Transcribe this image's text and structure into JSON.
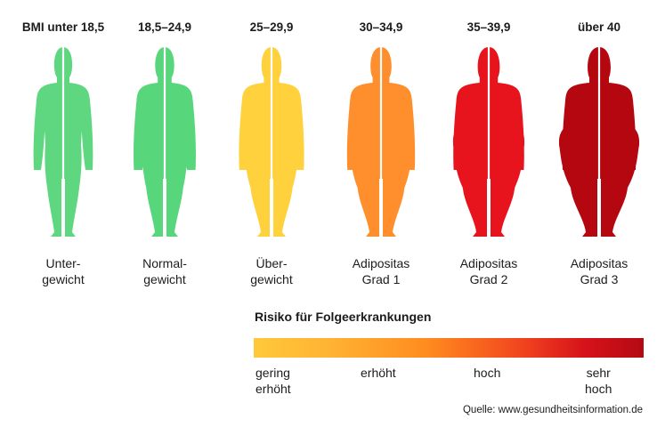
{
  "columns": [
    {
      "bmi": "BMI unter 18,5",
      "cat1": "Unter-",
      "cat2": "gewicht",
      "color": "#5ed780",
      "build": 0
    },
    {
      "bmi": "18,5–24,9",
      "cat1": "Normal-",
      "cat2": "gewicht",
      "color": "#57d67c",
      "build": 1
    },
    {
      "bmi": "25–29,9",
      "cat1": "Über-",
      "cat2": "gewicht",
      "color": "#ffd13c",
      "build": 2
    },
    {
      "bmi": "30–34,9",
      "cat1": "Adipositas",
      "cat2": "Grad 1",
      "color": "#ff8f2c",
      "build": 3
    },
    {
      "bmi": "35–39,9",
      "cat1": "Adipositas",
      "cat2": "Grad 2",
      "color": "#e8141d",
      "build": 4
    },
    {
      "bmi": "über 40",
      "cat1": "Adipositas",
      "cat2": "Grad 3",
      "color": "#b5070f",
      "build": 5
    }
  ],
  "risk": {
    "title": "Risiko für Folgeerkrankungen",
    "labels": {
      "gering_1": "gering",
      "gering_2": "erhöht",
      "erhoeht": "erhöht",
      "hoch": "hoch",
      "sehr_1": "sehr",
      "sehr_2": "hoch"
    },
    "gradient_colors": [
      "#ffc93a",
      "#ff8a1e",
      "#d6121a",
      "#b40a12"
    ]
  },
  "source": "Quelle: www.gesundheitsinformation.de"
}
